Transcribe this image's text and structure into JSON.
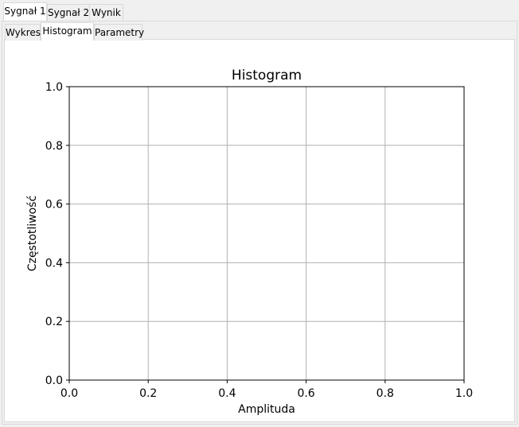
{
  "tabs_outer": [
    {
      "label": "Sygnał 1",
      "active": true
    },
    {
      "label": "Sygnał 2",
      "active": false
    },
    {
      "label": "Wynik",
      "active": false
    }
  ],
  "tabs_inner": [
    {
      "label": "Wykres",
      "active": false
    },
    {
      "label": "Histogram",
      "active": true
    },
    {
      "label": "Parametry",
      "active": false
    }
  ],
  "chart_data": {
    "type": "bar",
    "title": "Histogram",
    "xlabel": "Amplituda",
    "ylabel": "Częstotliwość",
    "xlim": [
      0,
      1
    ],
    "ylim": [
      0,
      1
    ],
    "xticks": [
      "0.0",
      "0.2",
      "0.4",
      "0.6",
      "0.8",
      "1.0"
    ],
    "yticks": [
      "0.0",
      "0.2",
      "0.4",
      "0.6",
      "0.8",
      "1.0"
    ],
    "grid": true,
    "series": [],
    "grid_color": "#b0b0b0"
  }
}
